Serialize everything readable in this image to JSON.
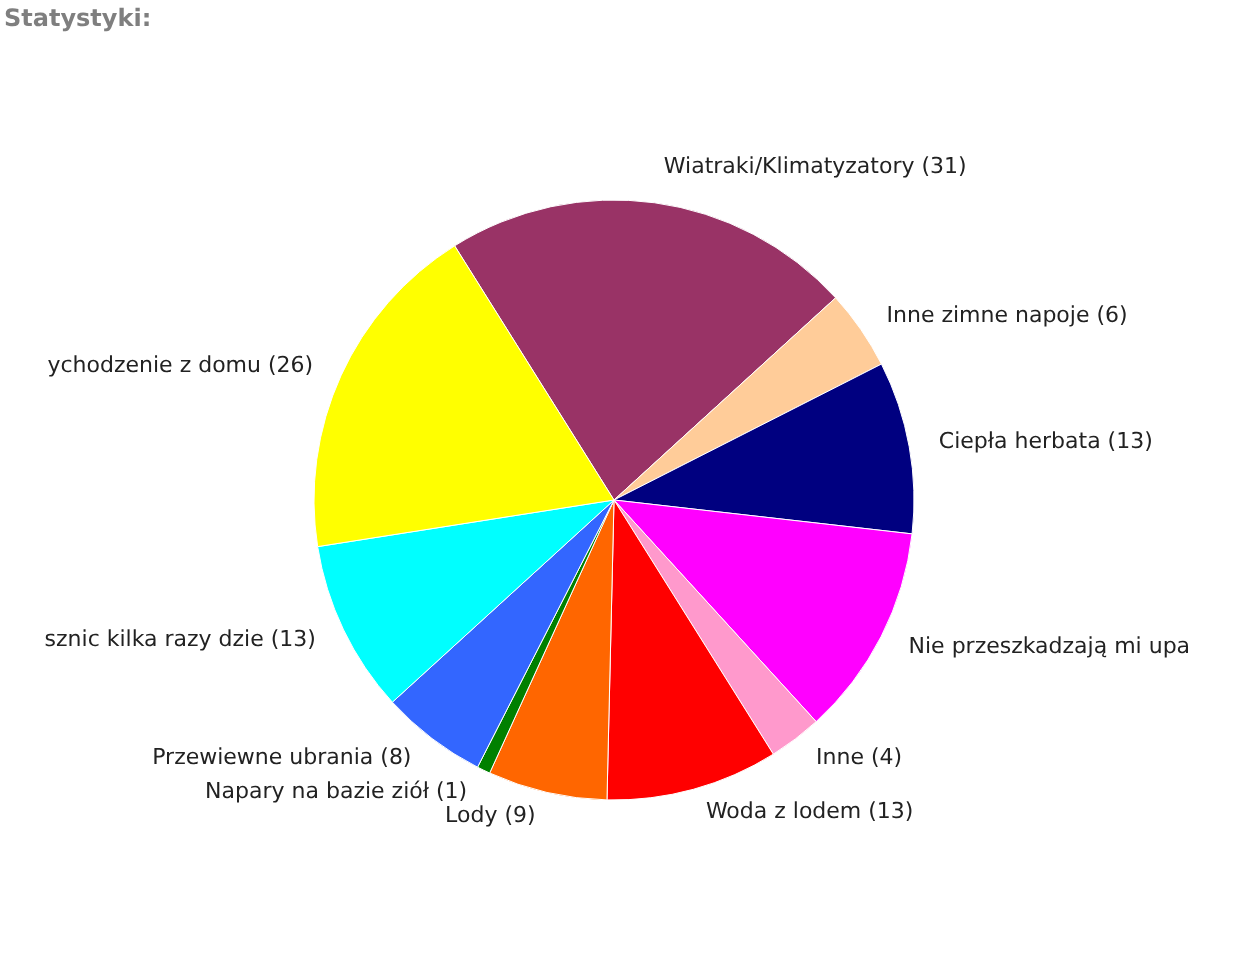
{
  "chart_data": {
    "type": "pie",
    "title": "Statystyki:",
    "categories": [
      "Wiatraki/Klimatyzatory (31)",
      "Inne zimne napoje (6)",
      "Ciepła herbata (13)",
      "Nie przeszkadzają mi upa",
      "Inne (4)",
      "Woda z lodem (13)",
      "Lody (9)",
      "Napary na bazie ziół (1)",
      "Przewiewne ubrania (8)",
      "sznic kilka razy dzie (13)",
      "ychodzenie z domu (26)"
    ],
    "values": [
      31,
      6,
      13,
      16,
      4,
      13,
      9,
      1,
      8,
      13,
      26
    ],
    "colors": [
      "#993366",
      "#ffcc99",
      "#000080",
      "#ff00ff",
      "#ff99cc",
      "#ff0000",
      "#ff6600",
      "#008000",
      "#3366ff",
      "#00ffff",
      "#ffff00"
    ]
  }
}
